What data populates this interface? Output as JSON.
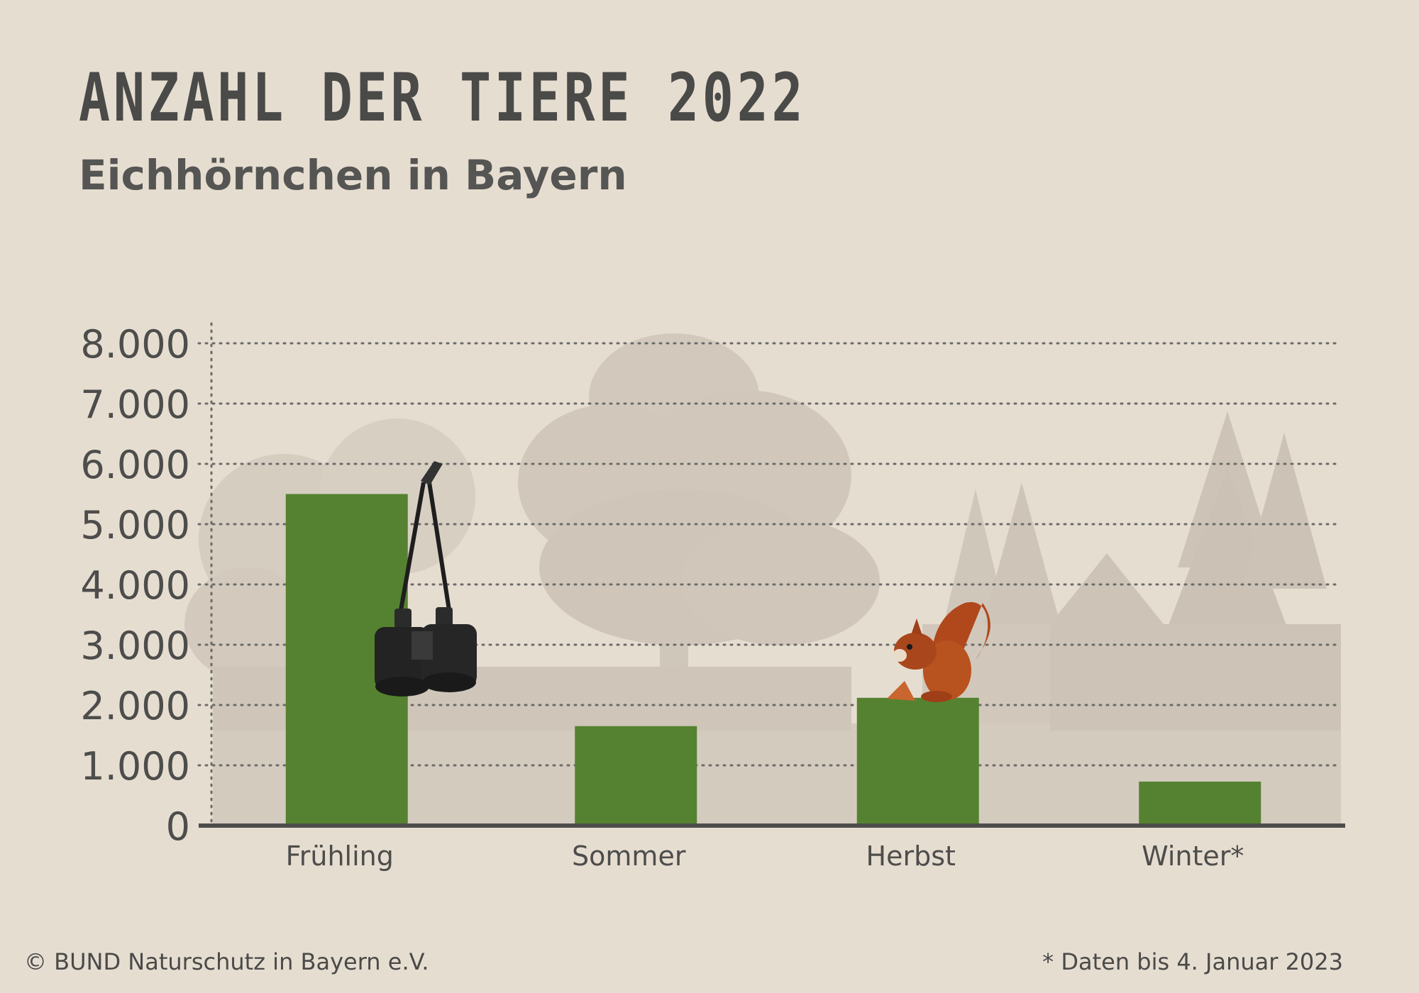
{
  "header": {
    "title": "ANZAHL DER TIERE 2022",
    "subtitle": "Eichhörnchen in Bayern"
  },
  "chart_data": {
    "type": "bar",
    "categories": [
      "Frühling",
      "Sommer",
      "Herbst",
      "Winter*"
    ],
    "values": [
      5500,
      1650,
      2120,
      730
    ],
    "title": "ANZAHL DER TIERE 2022",
    "subtitle": "Eichhörnchen in Bayern",
    "xlabel": "",
    "ylabel": "",
    "ylim": [
      0,
      8000
    ],
    "yticks": [
      0,
      1000,
      2000,
      3000,
      4000,
      5000,
      6000,
      7000,
      8000
    ],
    "ytick_labels": [
      "0",
      "1.000",
      "2.000",
      "3.000",
      "4.000",
      "5.000",
      "6.000",
      "7.000",
      "8.000"
    ],
    "grid": true,
    "legend": "none",
    "bar_color": "#558230",
    "axis_color": "#4d4d4b"
  },
  "footer": {
    "copyright": "© BUND Naturschutz in Bayern e.V.",
    "note": "* Daten bis 4. Januar 2023"
  },
  "decorations": {
    "background_scene": "forest-silhouette-icon",
    "binoculars": "binoculars-icon",
    "squirrel": "squirrel-icon"
  }
}
